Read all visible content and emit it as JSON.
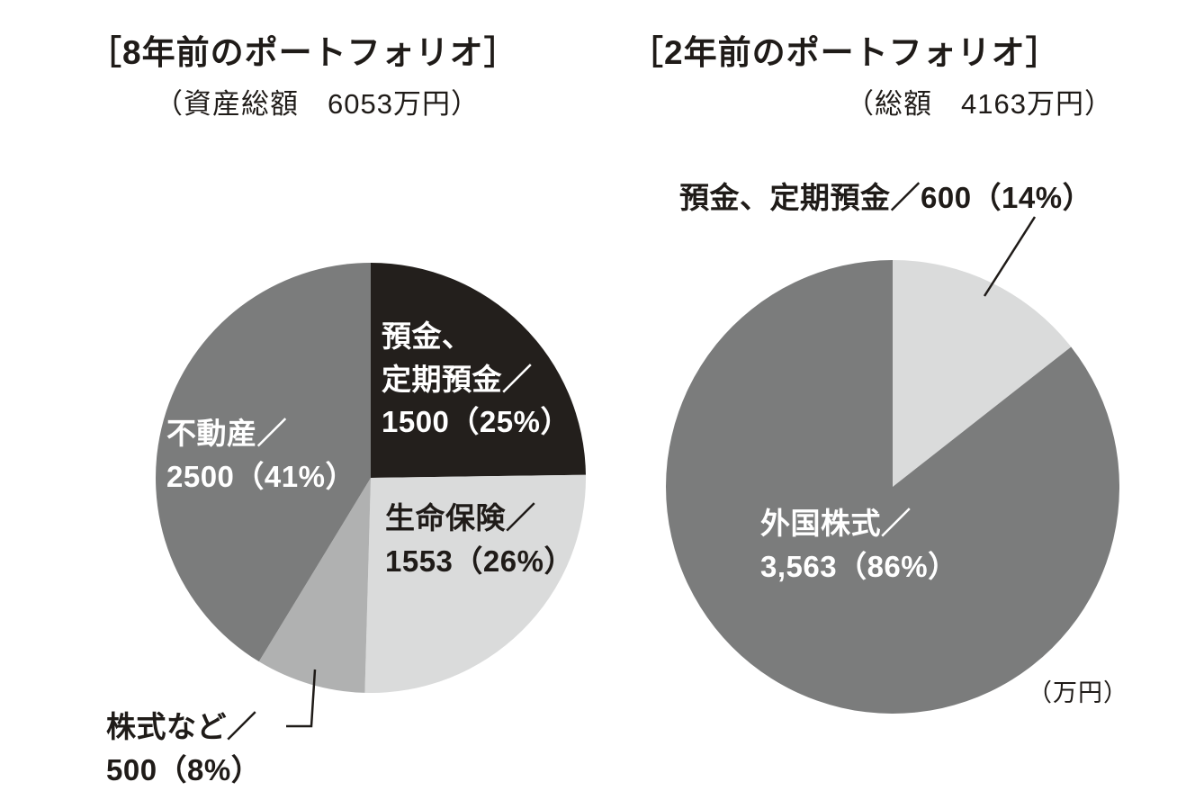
{
  "left": {
    "title": "［8年前のポートフォリオ］",
    "subtitle": "（資産総額　6053万円）",
    "labels": {
      "deposits_l1": "預金、",
      "deposits_l2": "定期預金／",
      "deposits_l3": "1500（25%）",
      "insurance_l1": "生命保険／",
      "insurance_l2": "1553（26%）",
      "real_estate_l1": "不動産／",
      "real_estate_l2": "2500（41%）",
      "stocks_l1": "株式など／",
      "stocks_l2": "500（8%）"
    }
  },
  "right": {
    "title": "［2年前のポートフォリオ］",
    "subtitle": "（総額　4163万円）",
    "labels": {
      "deposits": "預金、定期預金／600（14%）",
      "foreign_l1": "外国株式／",
      "foreign_l2": "3,563（86%）",
      "unit": "（万円）"
    }
  },
  "chart_data": [
    {
      "type": "pie",
      "title": "8年前のポートフォリオ",
      "subtitle": "資産総額 6053万円",
      "total": 6053,
      "unit": "万円",
      "start_angle": "top",
      "direction": "clockwise",
      "slices": [
        {
          "key": "deposits",
          "label": "預金、定期預金",
          "value": 1500,
          "pct": 25,
          "color": "#231f1c",
          "label_color": "#ffffff"
        },
        {
          "key": "life-insurance",
          "label": "生命保険",
          "value": 1553,
          "pct": 26,
          "color": "#dadbdb",
          "label_color": "#1f1b18"
        },
        {
          "key": "stocks",
          "label": "株式など",
          "value": 500,
          "pct": 8,
          "color": "#b0b1b1",
          "label_color": "#1f1b18"
        },
        {
          "key": "real-estate",
          "label": "不動産",
          "value": 2500,
          "pct": 41,
          "color": "#7b7c7c",
          "label_color": "#ffffff"
        }
      ]
    },
    {
      "type": "pie",
      "title": "2年前のポートフォリオ",
      "subtitle": "総額 4163万円",
      "total": 4163,
      "unit": "万円",
      "start_angle": "top",
      "direction": "clockwise",
      "slices": [
        {
          "key": "deposits",
          "label": "預金、定期預金",
          "value": 600,
          "pct": 14,
          "color": "#dadbdb",
          "label_color": "#1f1b18"
        },
        {
          "key": "foreign-stocks",
          "label": "外国株式",
          "value": 3563,
          "pct": 86,
          "color": "#7b7c7c",
          "label_color": "#ffffff"
        }
      ]
    }
  ]
}
